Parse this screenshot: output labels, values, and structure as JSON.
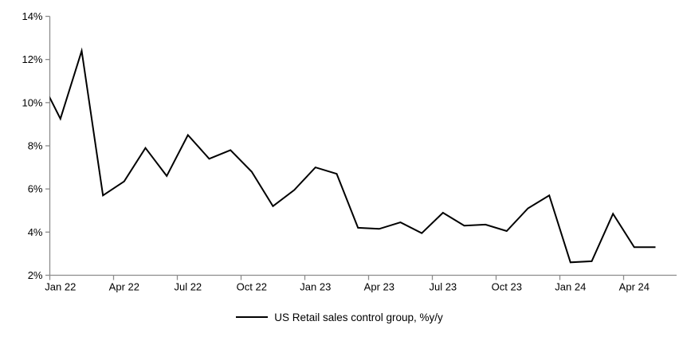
{
  "chart_data": {
    "type": "line",
    "title": "",
    "legend": "US Retail sales control group, %y/y",
    "legend_position": "bottom-center",
    "grid": false,
    "ylim": [
      2,
      14
    ],
    "y_tick_step": 2,
    "ytick_labels": [
      "2%",
      "4%",
      "6%",
      "8%",
      "10%",
      "12%",
      "14%"
    ],
    "xtick_labels": [
      "Jan 22",
      "Apr 22",
      "Jul 22",
      "Oct 22",
      "Jan 23",
      "Apr 23",
      "Jul 23",
      "Oct 23",
      "Jan 24",
      "Apr 24"
    ],
    "x": [
      "Jan 22",
      "Feb 22",
      "Mar 22",
      "Apr 22",
      "May 22",
      "Jun 22",
      "Jul 22",
      "Aug 22",
      "Sep 22",
      "Oct 22",
      "Nov 22",
      "Dec 22",
      "Jan 23",
      "Feb 23",
      "Mar 23",
      "Apr 23",
      "May 23",
      "Jun 23",
      "Jul 23",
      "Aug 23",
      "Sep 23",
      "Oct 23",
      "Nov 23",
      "Dec 23",
      "Jan 24",
      "Feb 24",
      "Mar 24",
      "Apr 24",
      "May 24"
    ],
    "values": [
      9.25,
      12.4,
      5.7,
      6.35,
      7.9,
      6.6,
      8.5,
      7.4,
      7.8,
      6.8,
      5.2,
      5.95,
      7.0,
      6.7,
      4.2,
      4.15,
      4.45,
      3.95,
      4.9,
      4.3,
      4.35,
      4.05,
      5.1,
      5.7,
      2.6,
      2.65,
      4.85,
      3.3,
      3.3
    ],
    "leading_clipped_point": {
      "label": "Dec 21",
      "value": 11.2
    },
    "line_color": "#000000",
    "axis_color": "#8c8c8c",
    "text_color": "#000000",
    "background": "#ffffff"
  }
}
